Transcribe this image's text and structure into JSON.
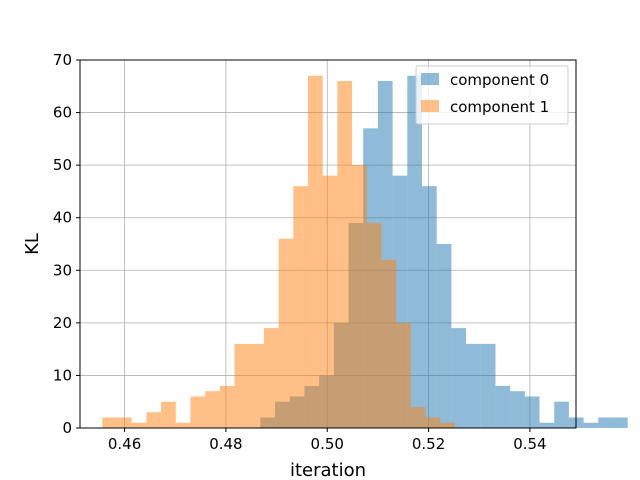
{
  "chart_data": {
    "type": "histogram",
    "xlabel": "iteration",
    "ylabel": "KL",
    "xlim": [
      0.4512,
      0.5491
    ],
    "ylim": [
      0,
      70
    ],
    "xticks": [
      "0.46",
      "0.48",
      "0.50",
      "0.52",
      "0.54"
    ],
    "xtick_values": [
      0.46,
      0.48,
      0.5,
      0.52,
      0.54
    ],
    "yticks": [
      "0",
      "10",
      "20",
      "30",
      "40",
      "50",
      "60",
      "70"
    ],
    "ytick_values": [
      0,
      10,
      20,
      30,
      40,
      50,
      60,
      70
    ],
    "grid": true,
    "legend_position": "top-right",
    "series": [
      {
        "name": "component 0",
        "color": "#1f77b4",
        "alpha": 0.5,
        "bin_start": 0.4868,
        "bin_width": 0.0029,
        "counts": [
          2,
          5,
          6,
          8,
          10,
          20,
          39,
          57,
          66,
          48,
          67,
          46,
          35,
          19,
          16,
          16,
          8,
          7,
          6,
          1,
          5,
          2,
          1,
          2,
          2
        ]
      },
      {
        "name": "component 1",
        "color": "#ff7f0e",
        "alpha": 0.5,
        "bin_start": 0.4556,
        "bin_width": 0.0029,
        "counts": [
          2,
          2,
          1,
          3,
          5,
          1,
          6,
          7,
          8,
          16,
          16,
          19,
          36,
          46,
          67,
          48,
          66,
          50,
          39,
          32,
          20,
          4,
          2,
          1
        ]
      }
    ]
  }
}
